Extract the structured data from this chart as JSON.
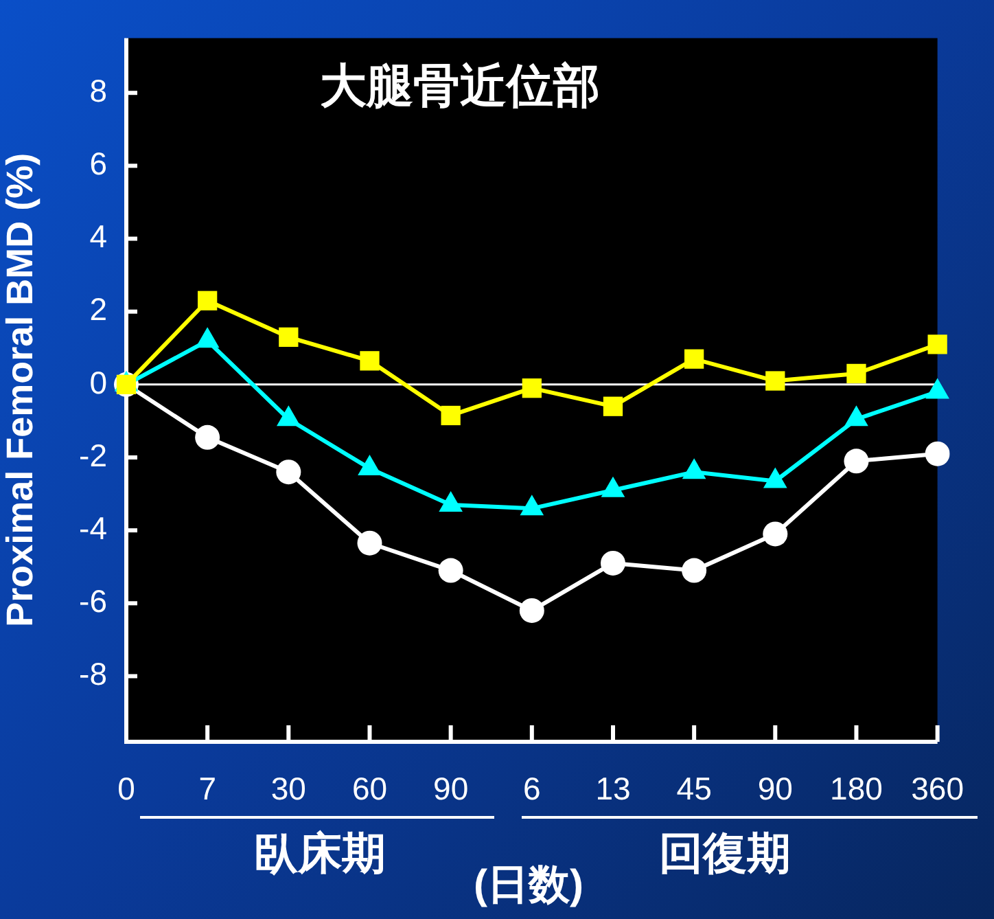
{
  "chart_data": {
    "type": "line",
    "title": "大腿骨近位部",
    "ylabel": "Proximal Femoral BMD (%)",
    "xlabel": "(日数)",
    "annotations": [
      "臥床期",
      "回復期"
    ],
    "categories": [
      "0",
      "7",
      "30",
      "60",
      "90",
      "6",
      "13",
      "45",
      "90",
      "180",
      "360"
    ],
    "series": [
      {
        "color": "#ffff00",
        "marker": "square",
        "values": [
          0,
          2.3,
          1.3,
          0.65,
          -0.85,
          -0.1,
          -0.6,
          0.7,
          0.1,
          0.3,
          1.1
        ]
      },
      {
        "color": "#00ffff",
        "marker": "triangle",
        "values": [
          0,
          1.2,
          -0.95,
          -2.3,
          -3.3,
          -3.4,
          -2.9,
          -2.4,
          -2.65,
          -0.95,
          -0.2
        ]
      },
      {
        "color": "#ffffff",
        "marker": "circle",
        "values": [
          0,
          -1.45,
          -2.4,
          -4.35,
          -5.1,
          -6.2,
          -4.9,
          -5.1,
          -4.1,
          -2.1,
          -1.9
        ]
      }
    ],
    "ylim": [
      -9.8,
      9.5
    ],
    "yticks": [
      -8,
      -6,
      -4,
      -2,
      0,
      2,
      4,
      6,
      8
    ],
    "ref_lines": [
      {
        "axis": "y",
        "value": 0,
        "color": "#ffffff"
      }
    ],
    "grid": false,
    "legend": false
  }
}
